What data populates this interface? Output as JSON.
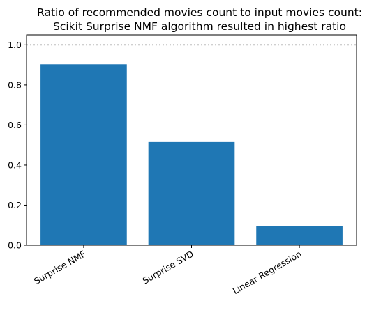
{
  "chart_data": {
    "type": "bar",
    "title_lines": [
      "Ratio of recommended movies count to input movies count:",
      "Scikit Surprise NMF algorithm resulted in highest ratio"
    ],
    "categories": [
      "Surprise NMF",
      "Surprise SVD",
      "Linear Regression"
    ],
    "values": [
      0.903,
      0.515,
      0.094
    ],
    "xlabel": "",
    "ylabel": "",
    "ylim": [
      0,
      1.05
    ],
    "yticks": [
      0.0,
      0.2,
      0.4,
      0.6,
      0.8,
      1.0
    ],
    "ytick_labels": [
      "0.0",
      "0.2",
      "0.4",
      "0.6",
      "0.8",
      "1.0"
    ],
    "reference_line": {
      "y": 1.0,
      "style": "dotted",
      "color": "#808080"
    },
    "bar_color": "#1f77b4",
    "x_tick_rotation_deg": -30,
    "grid": false,
    "legend": "none"
  }
}
